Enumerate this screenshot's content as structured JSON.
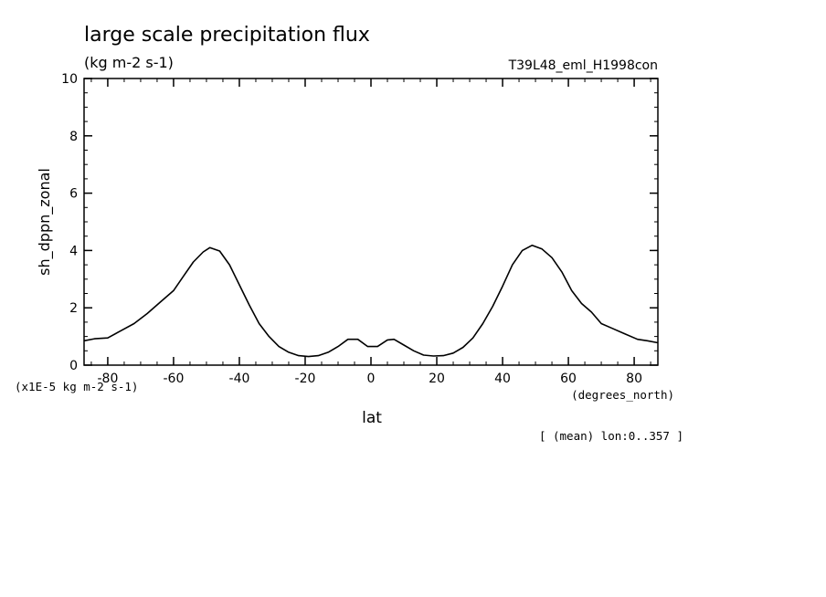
{
  "chart_data": {
    "type": "line",
    "title": "large scale precipitation flux",
    "subtitle": "(kg m-2 s-1)",
    "run_label": "T39L48_eml_H1998con",
    "ylabel": "sh_dppn_zonal",
    "xlabel": "lat",
    "x_units": "(degrees_north)",
    "y_scale_note": "(x1E-5 kg m-2 s-1)",
    "footnote": "[ (mean) lon:0..357 ]",
    "xlim": [
      -87.2,
      87.2
    ],
    "ylim": [
      0,
      10
    ],
    "x_ticks": [
      -80,
      -60,
      -40,
      -20,
      0,
      20,
      40,
      60,
      80
    ],
    "x_tick_labels": [
      "-80",
      "-60",
      "-40",
      "-20",
      "0",
      "20",
      "40",
      "60",
      "80"
    ],
    "y_ticks": [
      0,
      2,
      4,
      6,
      8,
      10
    ],
    "y_tick_labels": [
      "0",
      "2",
      "4",
      "6",
      "8",
      "10"
    ],
    "grid": false,
    "series": [
      {
        "x": [
          -87.2,
          -84,
          -80,
          -76,
          -72,
          -68,
          -64,
          -60,
          -57,
          -54,
          -51,
          -49,
          -46,
          -43,
          -40,
          -37,
          -34,
          -31,
          -28,
          -25,
          -22,
          -19,
          -16,
          -13,
          -10,
          -7,
          -4,
          -1,
          2,
          5,
          7,
          10,
          13,
          16,
          19,
          22,
          25,
          28,
          31,
          34,
          37,
          40,
          43,
          46,
          49,
          52,
          55,
          58,
          61,
          64,
          67,
          70,
          73,
          77,
          81,
          84,
          87.2
        ],
        "y": [
          0.85,
          0.92,
          0.95,
          1.2,
          1.45,
          1.8,
          2.2,
          2.6,
          3.1,
          3.6,
          3.95,
          4.1,
          3.98,
          3.5,
          2.8,
          2.1,
          1.45,
          1.0,
          0.65,
          0.45,
          0.33,
          0.3,
          0.33,
          0.45,
          0.65,
          0.9,
          0.9,
          0.65,
          0.65,
          0.88,
          0.9,
          0.7,
          0.5,
          0.35,
          0.32,
          0.33,
          0.42,
          0.62,
          0.95,
          1.45,
          2.05,
          2.75,
          3.5,
          4.0,
          4.18,
          4.05,
          3.75,
          3.25,
          2.6,
          2.15,
          1.85,
          1.45,
          1.3,
          1.1,
          0.9,
          0.85,
          0.78
        ]
      }
    ]
  }
}
